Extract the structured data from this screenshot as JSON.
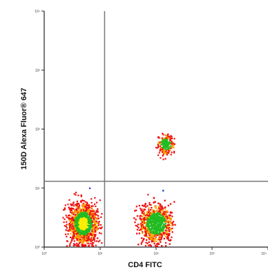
{
  "chart_data": {
    "type": "scatter",
    "title": "",
    "xlabel": "CD4 FITC",
    "ylabel": "150D Alexa Fluor® 647",
    "x_scale": "log",
    "y_scale": "log",
    "xlim": [
      1,
      10000
    ],
    "ylim": [
      1,
      10000
    ],
    "x_ticks": [
      "10⁰",
      "10¹",
      "10²",
      "10³",
      "10⁴"
    ],
    "y_ticks": [
      "10⁰",
      "10¹",
      "10²",
      "10³",
      "10⁴"
    ],
    "grid": false,
    "quadrant_gates": {
      "x": 12,
      "y": 13
    },
    "density_colors": [
      "#2233cc",
      "#ee1111",
      "#ffa500",
      "#22bb22",
      "#ffee00"
    ],
    "populations": [
      {
        "label": "CD4-negative / 150D-low",
        "center": [
          5,
          2.5
        ],
        "spread_decades": [
          0.35,
          0.45
        ]
      },
      {
        "label": "CD4-positive / 150D-low",
        "center": [
          100,
          2.5
        ],
        "spread_decades": [
          0.38,
          0.42
        ]
      },
      {
        "label": "CD4-positive / 150D-high",
        "center": [
          150,
          55
        ],
        "spread_decades": [
          0.2,
          0.22
        ]
      }
    ]
  }
}
